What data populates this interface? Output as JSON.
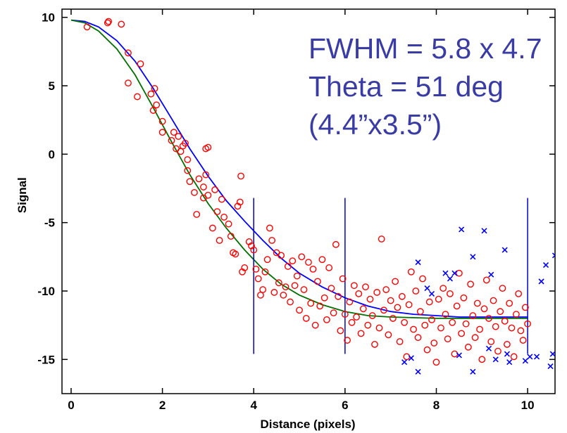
{
  "chart_data": {
    "type": "scatter",
    "title": "",
    "xlabel": "Distance (pixels)",
    "ylabel": "Signal",
    "xlim": [
      -0.2,
      10.6
    ],
    "ylim": [
      -17.5,
      10.6
    ],
    "x_ticks": [
      0,
      2,
      4,
      6,
      8,
      10
    ],
    "x_tick_labels": [
      "0",
      "2",
      "4",
      "6",
      "8",
      "10"
    ],
    "y_ticks": [
      10,
      5,
      0,
      -5,
      -10,
      -15
    ],
    "y_tick_labels": [
      "10",
      "5",
      "0",
      "-5",
      "-10",
      "-15"
    ],
    "grid": false,
    "annotations": [
      "FWHM = 5.8 x 4.7",
      "Theta = 51 deg",
      "(4.4”x3.5”)"
    ],
    "vertical_markers": [
      {
        "x": 4,
        "y_from": -14.6,
        "y_to": -3.2
      },
      {
        "x": 6,
        "y_from": -14.6,
        "y_to": -3.2
      },
      {
        "x": 10,
        "y_from": -14.6,
        "y_to": -3.2
      }
    ],
    "curves": [
      {
        "color": "#0000ff",
        "points": [
          [
            0,
            9.8
          ],
          [
            0.3,
            9.7
          ],
          [
            0.6,
            9.3
          ],
          [
            1.0,
            8.3
          ],
          [
            1.4,
            6.8
          ],
          [
            1.8,
            4.8
          ],
          [
            2.2,
            2.6
          ],
          [
            2.6,
            0.4
          ],
          [
            3.0,
            -1.6
          ],
          [
            3.4,
            -3.4
          ],
          [
            3.8,
            -4.9
          ],
          [
            4.2,
            -6.3
          ],
          [
            4.6,
            -7.6
          ],
          [
            5.0,
            -8.7
          ],
          [
            5.5,
            -9.7
          ],
          [
            6.0,
            -10.5
          ],
          [
            6.5,
            -11.1
          ],
          [
            7.0,
            -11.5
          ],
          [
            7.5,
            -11.7
          ],
          [
            8.0,
            -11.8
          ],
          [
            8.5,
            -11.9
          ],
          [
            9.0,
            -11.9
          ],
          [
            10.0,
            -11.9
          ]
        ]
      },
      {
        "color": "#007000",
        "points": [
          [
            0,
            9.8
          ],
          [
            0.3,
            9.6
          ],
          [
            0.6,
            9.0
          ],
          [
            1.0,
            7.7
          ],
          [
            1.4,
            5.8
          ],
          [
            1.8,
            3.4
          ],
          [
            2.2,
            0.9
          ],
          [
            2.6,
            -1.5
          ],
          [
            3.0,
            -3.6
          ],
          [
            3.4,
            -5.4
          ],
          [
            3.8,
            -7.0
          ],
          [
            4.2,
            -8.4
          ],
          [
            4.6,
            -9.5
          ],
          [
            5.0,
            -10.3
          ],
          [
            5.5,
            -11.0
          ],
          [
            6.0,
            -11.5
          ],
          [
            6.5,
            -11.8
          ],
          [
            7.0,
            -11.9
          ],
          [
            8.0,
            -12.0
          ],
          [
            10.0,
            -12.0
          ]
        ]
      }
    ],
    "series": [
      {
        "marker": "circle",
        "color": "#ff0000",
        "points": [
          [
            0.35,
            9.3
          ],
          [
            0.8,
            9.6
          ],
          [
            0.82,
            9.7
          ],
          [
            1.1,
            9.5
          ],
          [
            1.25,
            7.4
          ],
          [
            1.25,
            5.2
          ],
          [
            1.45,
            4.2
          ],
          [
            1.52,
            6.6
          ],
          [
            1.75,
            4.4
          ],
          [
            1.8,
            3.2
          ],
          [
            1.83,
            4.8
          ],
          [
            1.87,
            3.6
          ],
          [
            2.0,
            2.4
          ],
          [
            2.0,
            1.6
          ],
          [
            2.2,
            1.0
          ],
          [
            2.25,
            1.6
          ],
          [
            2.3,
            0.4
          ],
          [
            2.35,
            1.3
          ],
          [
            2.4,
            0.2
          ],
          [
            2.45,
            0.6
          ],
          [
            2.5,
            0.8
          ],
          [
            2.55,
            -0.4
          ],
          [
            2.55,
            -1.2
          ],
          [
            2.6,
            -2.0
          ],
          [
            2.7,
            -2.8
          ],
          [
            2.75,
            -4.4
          ],
          [
            2.8,
            -1.8
          ],
          [
            2.9,
            -3.2
          ],
          [
            2.95,
            -1.5
          ],
          [
            2.9,
            -2.4
          ],
          [
            2.95,
            0.4
          ],
          [
            3.0,
            0.5
          ],
          [
            3.0,
            -3.0
          ],
          [
            3.1,
            -5.4
          ],
          [
            3.15,
            -2.6
          ],
          [
            3.2,
            -4.2
          ],
          [
            3.25,
            -6.3
          ],
          [
            3.3,
            -3.3
          ],
          [
            3.35,
            -4.6
          ],
          [
            3.45,
            -5.1
          ],
          [
            3.5,
            -6.0
          ],
          [
            3.55,
            -7.2
          ],
          [
            3.6,
            -7.3
          ],
          [
            3.65,
            -3.8
          ],
          [
            3.7,
            -3.5
          ],
          [
            3.72,
            -1.6
          ],
          [
            3.75,
            -8.6
          ],
          [
            3.8,
            -8.3
          ],
          [
            3.9,
            -6.4
          ],
          [
            3.95,
            -6.7
          ],
          [
            4.0,
            -7.0
          ],
          [
            4.05,
            -8.4
          ],
          [
            4.1,
            -9.1
          ],
          [
            4.15,
            -10.3
          ],
          [
            4.2,
            -9.9
          ],
          [
            4.25,
            -8.6
          ],
          [
            4.3,
            -7.7
          ],
          [
            4.35,
            -5.4
          ],
          [
            4.4,
            -6.3
          ],
          [
            4.45,
            -10.1
          ],
          [
            4.5,
            -7.2
          ],
          [
            4.55,
            -9.4
          ],
          [
            4.6,
            -7.4
          ],
          [
            4.65,
            -10.3
          ],
          [
            4.7,
            -9.7
          ],
          [
            4.75,
            -8.2
          ],
          [
            4.8,
            -10.8
          ],
          [
            4.85,
            -7.8
          ],
          [
            4.9,
            -9.6
          ],
          [
            4.95,
            -8.9
          ],
          [
            5.0,
            -11.4
          ],
          [
            5.05,
            -7.5
          ],
          [
            5.1,
            -9.9
          ],
          [
            5.15,
            -12.0
          ],
          [
            5.2,
            -7.9
          ],
          [
            5.25,
            -10.9
          ],
          [
            5.3,
            -8.4
          ],
          [
            5.35,
            -12.5
          ],
          [
            5.4,
            -9.3
          ],
          [
            5.45,
            -11.1
          ],
          [
            5.5,
            -7.7
          ],
          [
            5.55,
            -10.5
          ],
          [
            5.6,
            -12.1
          ],
          [
            5.65,
            -8.3
          ],
          [
            5.7,
            -9.8
          ],
          [
            5.75,
            -11.6
          ],
          [
            5.8,
            -6.6
          ],
          [
            5.85,
            -10.4
          ],
          [
            5.9,
            -12.9
          ],
          [
            5.95,
            -9.1
          ],
          [
            6.0,
            -11.7
          ],
          [
            6.05,
            -13.6
          ],
          [
            6.1,
            -10.8
          ],
          [
            6.15,
            -12.3
          ],
          [
            6.2,
            -9.6
          ],
          [
            6.25,
            -11.9
          ],
          [
            6.3,
            -10.2
          ],
          [
            6.35,
            -13.1
          ],
          [
            6.4,
            -11.3
          ],
          [
            6.45,
            -9.7
          ],
          [
            6.5,
            -12.5
          ],
          [
            6.55,
            -10.6
          ],
          [
            6.6,
            -11.8
          ],
          [
            6.65,
            -13.9
          ],
          [
            6.7,
            -10.1
          ],
          [
            6.75,
            -12.7
          ],
          [
            6.8,
            -6.2
          ],
          [
            6.85,
            -11.4
          ],
          [
            6.9,
            -9.9
          ],
          [
            6.95,
            -13.2
          ],
          [
            7.0,
            -10.7
          ],
          [
            7.05,
            -12.0
          ],
          [
            7.1,
            -9.3
          ],
          [
            7.15,
            -11.2
          ],
          [
            7.2,
            -13.7
          ],
          [
            7.25,
            -10.4
          ],
          [
            7.3,
            -12.3
          ],
          [
            7.35,
            -14.8
          ],
          [
            7.4,
            -11.0
          ],
          [
            7.45,
            -8.6
          ],
          [
            7.5,
            -12.8
          ],
          [
            7.55,
            -10.0
          ],
          [
            7.6,
            -13.4
          ],
          [
            7.65,
            -11.5
          ],
          [
            7.7,
            -9.1
          ],
          [
            7.75,
            -12.5
          ],
          [
            7.8,
            -14.3
          ],
          [
            7.85,
            -10.8
          ],
          [
            7.9,
            -12.1
          ],
          [
            7.95,
            -13.8
          ],
          [
            8.0,
            -15.2
          ],
          [
            8.05,
            -10.6
          ],
          [
            8.1,
            -12.7
          ],
          [
            8.15,
            -9.8
          ],
          [
            8.2,
            -11.7
          ],
          [
            8.25,
            -13.5
          ],
          [
            8.3,
            -10.2
          ],
          [
            8.35,
            -12.3
          ],
          [
            8.4,
            -14.6
          ],
          [
            8.45,
            -11.1
          ],
          [
            8.5,
            -8.7
          ],
          [
            8.55,
            -13.1
          ],
          [
            8.6,
            -10.5
          ],
          [
            8.65,
            -12.4
          ],
          [
            8.7,
            -14.1
          ],
          [
            8.75,
            -9.5
          ],
          [
            8.8,
            -11.8
          ],
          [
            8.85,
            -13.4
          ],
          [
            8.9,
            -10.9
          ],
          [
            8.95,
            -12.8
          ],
          [
            9.0,
            -15.0
          ],
          [
            9.05,
            -11.3
          ],
          [
            9.1,
            -9.2
          ],
          [
            9.15,
            -12.0
          ],
          [
            9.2,
            -13.7
          ],
          [
            9.25,
            -10.7
          ],
          [
            9.3,
            -12.6
          ],
          [
            9.35,
            -14.4
          ],
          [
            9.4,
            -11.5
          ],
          [
            9.45,
            -9.8
          ],
          [
            9.5,
            -12.2
          ],
          [
            9.55,
            -13.9
          ],
          [
            9.6,
            -10.9
          ],
          [
            9.65,
            -12.7
          ],
          [
            9.7,
            -14.8
          ],
          [
            9.75,
            -11.7
          ],
          [
            9.8,
            -10.2
          ],
          [
            9.85,
            -12.9
          ],
          [
            9.9,
            -13.6
          ],
          [
            9.95,
            -11.2
          ],
          [
            10.0,
            -12.4
          ]
        ]
      },
      {
        "marker": "x",
        "color": "#0000ff",
        "points": [
          [
            7.6,
            -7.9
          ],
          [
            7.8,
            -9.8
          ],
          [
            7.9,
            -10.2
          ],
          [
            8.2,
            -8.7
          ],
          [
            8.3,
            -9.1
          ],
          [
            8.4,
            -8.7
          ],
          [
            8.55,
            -5.5
          ],
          [
            8.8,
            -7.5
          ],
          [
            9.05,
            -5.6
          ],
          [
            9.2,
            -8.8
          ],
          [
            9.5,
            -7.0
          ],
          [
            9.55,
            -14.6
          ],
          [
            9.6,
            -15.2
          ],
          [
            7.3,
            -15.2
          ],
          [
            7.45,
            -14.9
          ],
          [
            7.6,
            -15.9
          ],
          [
            8.5,
            -14.7
          ],
          [
            8.8,
            -15.9
          ],
          [
            9.15,
            -14.2
          ],
          [
            9.3,
            -15.0
          ],
          [
            9.95,
            -15.1
          ],
          [
            10.05,
            -14.8
          ],
          [
            10.2,
            -14.8
          ],
          [
            10.3,
            -9.3
          ],
          [
            10.4,
            -8.1
          ],
          [
            10.5,
            -15.5
          ],
          [
            10.55,
            -14.6
          ],
          [
            10.6,
            -7.4
          ]
        ]
      }
    ]
  }
}
